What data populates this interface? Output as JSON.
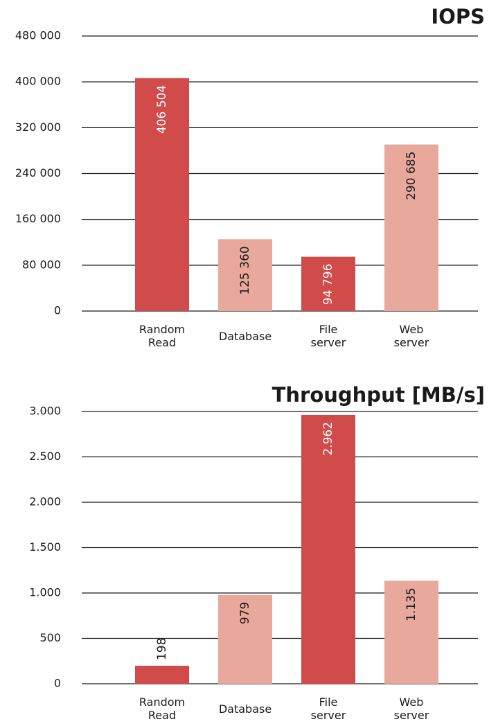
{
  "chart_data": [
    {
      "type": "bar",
      "title": "IOPS",
      "categories": [
        "Random\nRead",
        "Database",
        "File\nserver",
        "Web\nserver"
      ],
      "values": [
        406504,
        125360,
        94796,
        290685
      ],
      "value_labels": [
        "406 504",
        "125 360",
        "94 796",
        "290 685"
      ],
      "colors": [
        "#d14b4b",
        "#e8a99c",
        "#d14b4b",
        "#e8a99c"
      ],
      "ylim": [
        0,
        480000
      ],
      "yticks": [
        0,
        {
          "value": 80000,
          "label": "80 000"
        },
        {
          "value": 160000,
          "label": "160 000"
        },
        {
          "value": 240000,
          "label": "240 000"
        },
        {
          "value": 320000,
          "label": "320 000"
        },
        {
          "value": 400000,
          "label": "400 000"
        },
        {
          "value": 480000,
          "label": "480 000"
        }
      ],
      "grid": true
    },
    {
      "type": "bar",
      "title": "Throughput  [MB/s]",
      "categories": [
        "Random\nRead",
        "Database",
        "File\nserver",
        "Web\nserver"
      ],
      "values": [
        198,
        979,
        2962,
        1135
      ],
      "value_labels": [
        "198",
        "979",
        "2.962",
        "1.135"
      ],
      "colors": [
        "#d14b4b",
        "#e8a99c",
        "#d14b4b",
        "#e8a99c"
      ],
      "ylim": [
        0,
        3000
      ],
      "yticks": [
        0,
        500,
        {
          "value": 1000,
          "label": "1.000"
        },
        {
          "value": 1500,
          "label": "1.500"
        },
        {
          "value": 2000,
          "label": "2.000"
        },
        {
          "value": 2500,
          "label": "2.500"
        },
        {
          "value": 3000,
          "label": "3.000"
        }
      ],
      "grid": true
    }
  ]
}
